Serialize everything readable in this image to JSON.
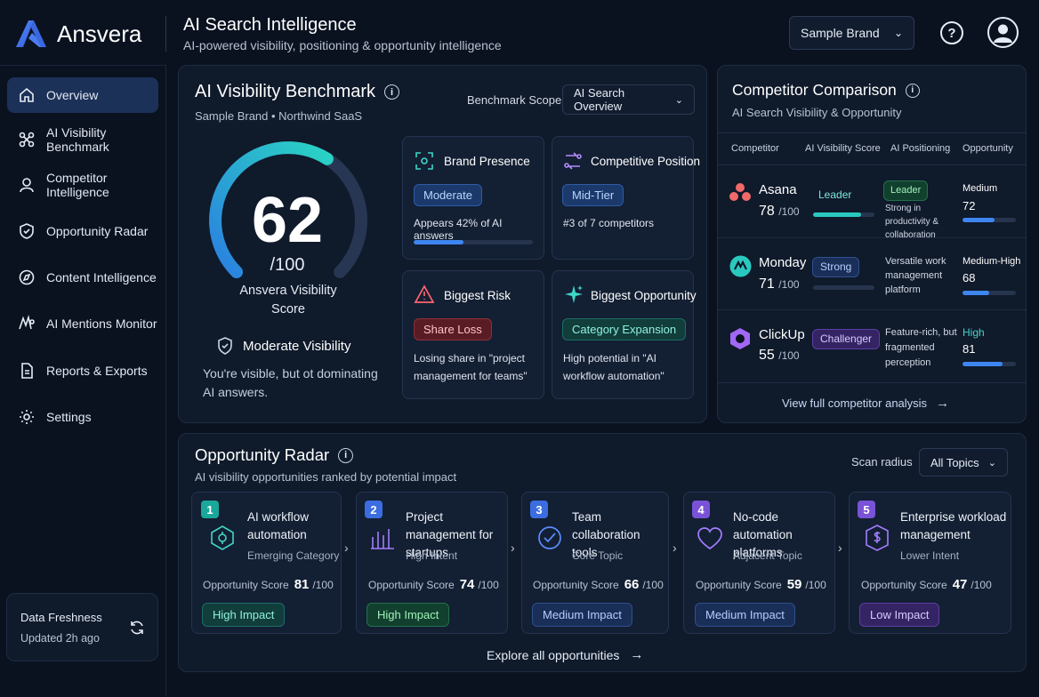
{
  "brand": {
    "name": "Ansvera"
  },
  "header": {
    "title": "AI Search Intelligence",
    "subtitle": "AI-powered visibility, positioning & opportunity intelligence",
    "brand_select": "Sample Brand"
  },
  "sidebar": {
    "items": [
      {
        "label": "Overview",
        "icon": "home-icon",
        "active": true
      },
      {
        "label": "AI Visibility Benchmark",
        "icon": "nodes-icon"
      },
      {
        "label": "Competitor Intelligence",
        "icon": "user-icon"
      },
      {
        "label": "Opportunity Radar",
        "icon": "shield-icon"
      },
      {
        "label": "Content Intelligence",
        "icon": "compass-icon"
      },
      {
        "label": "AI Mentions Monitor",
        "icon": "mentions-icon"
      },
      {
        "label": "Reports & Exports",
        "icon": "document-icon"
      },
      {
        "label": "Settings",
        "icon": "gear-icon"
      }
    ],
    "freshness": {
      "title": "Data Freshness",
      "updated": "Updated 2h ago"
    }
  },
  "benchmark": {
    "title": "AI Visibility Benchmark",
    "context": "Sample Brand • Northwind SaaS",
    "scope_label": "Benchmark Scope",
    "scope_value": "AI Search Overview",
    "score": "62",
    "score_max": "/100",
    "score_value": 62,
    "score_label": "Ansvera Visibility Score",
    "status": "Moderate Visibility",
    "status_desc": "You're visible, but ot dominating AI answers.",
    "cards": {
      "presence": {
        "title": "Brand Presence",
        "pill": "Moderate",
        "desc": "Appears 42% of AI answers",
        "progress": 0.42
      },
      "position": {
        "title": "Competitive Position",
        "pill": "Mid-Tier",
        "desc": "#3 of 7 competitors"
      },
      "risk": {
        "title": "Biggest Risk",
        "pill": "Share Loss",
        "desc": "Losing share in \"project management for teams\""
      },
      "opportunity": {
        "title": "Biggest Opportunity",
        "pill": "Category Expansion",
        "desc": "High potential in \"AI workflow automation\""
      }
    }
  },
  "competitors": {
    "title": "Competitor Comparison",
    "subtitle": "AI Search Visibility & Opportunity",
    "headers": [
      "Competitor",
      "AI Visibility Score",
      "AI Positioning",
      "Opportunity"
    ],
    "rows": [
      {
        "name": "Asana",
        "score": "78",
        "max": "/100",
        "tier": "Leader",
        "tier_progress": 0.78,
        "positioning_pill": "Leader",
        "positioning": "Strong in productivity & collaboration",
        "opp_label": "Medium",
        "opp_value": "72",
        "opp_progress": 0.6,
        "brand_color": "#f06a6a"
      },
      {
        "name": "Monday",
        "score": "71",
        "max": "/100",
        "tier": "Strong",
        "tier_progress": 0.0,
        "positioning": "Versatile work management platform",
        "opp_label": "Medium-High",
        "opp_value": "68",
        "opp_progress": 0.5,
        "brand_color": "#2ac9c0"
      },
      {
        "name": "ClickUp",
        "score": "55",
        "max": "/100",
        "tier": "Challenger",
        "tier_progress": 0.0,
        "positioning": "Feature-rich, but fragmented perception",
        "opp_label": "High",
        "opp_value": "81",
        "opp_progress": 0.75,
        "brand_color": "#a168f5"
      }
    ],
    "link": "View full competitor analysis"
  },
  "radar": {
    "title": "Opportunity Radar",
    "subtitle": "AI visibility opportunities ranked by potential impact",
    "scan_label": "Scan radius",
    "scan_value": "All Topics",
    "score_label": "Opportunity Score",
    "score_max": "/100",
    "items": [
      {
        "num": "1",
        "title": "AI workflow automation",
        "category": "Emerging Category",
        "score": "81",
        "impact": "High Impact",
        "color": "#1aa89a"
      },
      {
        "num": "2",
        "title": "Project management for startups",
        "category": "High Intent",
        "score": "74",
        "impact": "High Impact",
        "color": "#3b6de0"
      },
      {
        "num": "3",
        "title": "Team collaboration tools",
        "category": "Core Topic",
        "score": "66",
        "impact": "Medium Impact",
        "color": "#3b6de0"
      },
      {
        "num": "4",
        "title": "No-code automation platforms",
        "category": "Adjacent Topic",
        "score": "59",
        "impact": "Medium Impact",
        "color": "#7a52d8"
      },
      {
        "num": "5",
        "title": "Enterprise workload management",
        "category": "Lower Intent",
        "score": "47",
        "impact": "Low Impact",
        "color": "#7a52d8"
      }
    ],
    "link": "Explore all opportunities"
  }
}
